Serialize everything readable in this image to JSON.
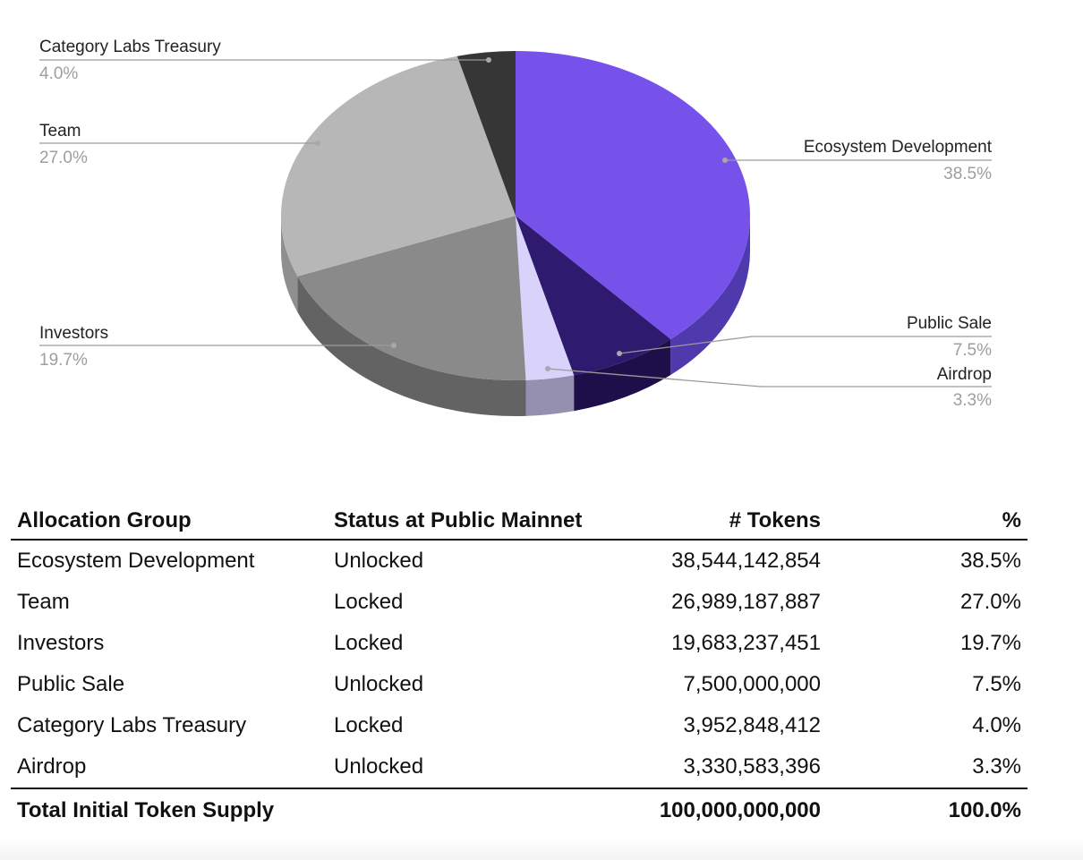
{
  "chart_data": {
    "type": "pie",
    "style": "3d",
    "slices": [
      {
        "label": "Ecosystem Development",
        "value": 38.5,
        "pct_label": "38.5%",
        "color": "#7752ea",
        "side_color": "#4f3aad"
      },
      {
        "label": "Public Sale",
        "value": 7.5,
        "pct_label": "7.5%",
        "color": "#2e1a6e",
        "side_color": "#1e0f4a"
      },
      {
        "label": "Airdrop",
        "value": 3.3,
        "pct_label": "3.3%",
        "color": "#d9d2fa",
        "side_color": "#9690b0"
      },
      {
        "label": "Investors",
        "value": 19.7,
        "pct_label": "19.7%",
        "color": "#8a8a8a",
        "side_color": "#636363"
      },
      {
        "label": "Team",
        "value": 27.0,
        "pct_label": "27.0%",
        "color": "#b7b7b7",
        "side_color": "#8f8f8f"
      },
      {
        "label": "Category Labs Treasury",
        "value": 4.0,
        "pct_label": "4.0%",
        "color": "#363636",
        "side_color": "#222222"
      }
    ]
  },
  "table": {
    "headers": [
      "Allocation Group",
      "Status at Public Mainnet",
      "# Tokens",
      "%"
    ],
    "rows": [
      [
        "Ecosystem Development",
        "Unlocked",
        "38,544,142,854",
        "38.5%"
      ],
      [
        "Team",
        "Locked",
        "26,989,187,887",
        "27.0%"
      ],
      [
        "Investors",
        "Locked",
        "19,683,237,451",
        "19.7%"
      ],
      [
        "Public Sale",
        "Unlocked",
        "7,500,000,000",
        "7.5%"
      ],
      [
        "Category Labs Treasury",
        "Locked",
        "3,952,848,412",
        "4.0%"
      ],
      [
        "Airdrop",
        "Unlocked",
        "3,330,583,396",
        "3.3%"
      ]
    ],
    "total": [
      "Total Initial Token Supply",
      "",
      "100,000,000,000",
      "100.0%"
    ]
  }
}
